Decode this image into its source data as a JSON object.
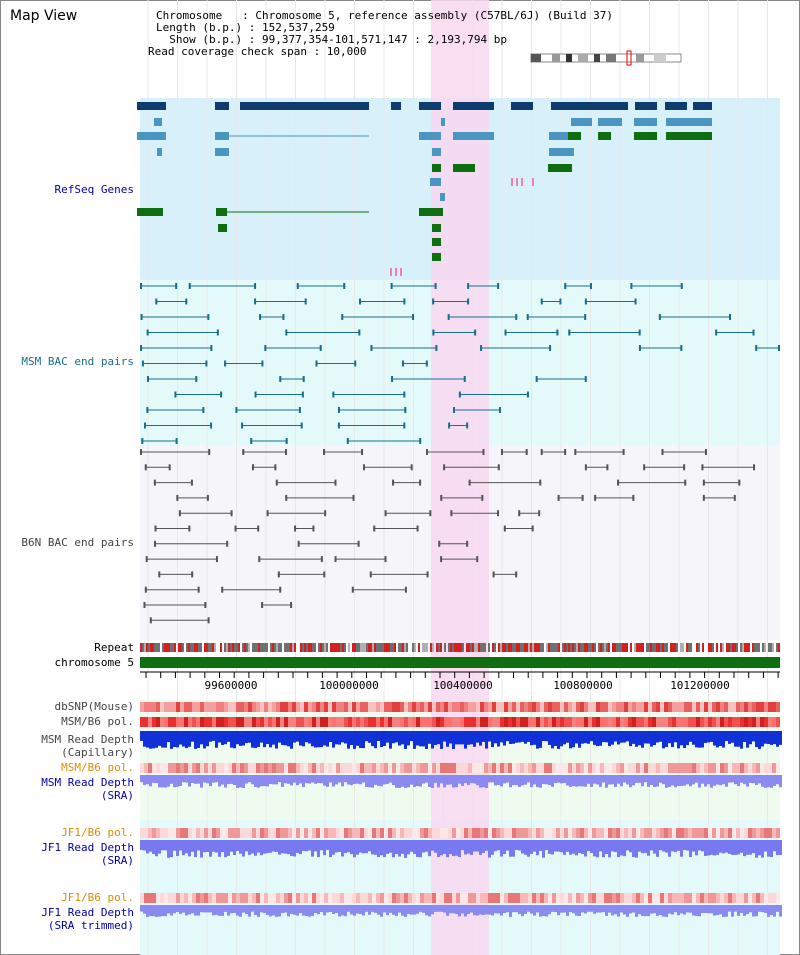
{
  "header": {
    "title": "Map View",
    "chromosome_line": "Chromosome   : Chromosome 5, reference assembly (C57BL/6J) (Build 37)",
    "length_line": "Length (b.p.) : 152,537,259",
    "show_line": "  Show (b.p.) : 99,377,354-101,571,147 : 2,193,794 bp",
    "coverage_line": "Read coverage check span : 10,000"
  },
  "tracks": {
    "refseq": "RefSeq Genes",
    "msm_bac": "MSM BAC end pairs",
    "b6n_bac": "B6N BAC end pairs",
    "repeat": "Repeat",
    "chromosome": "chromosome 5",
    "dbsnp": "dbSNP(Mouse)",
    "msm_b6_pol_1": "MSM/B6 pol.",
    "msm_read_depth_cap_1": "MSM Read Depth",
    "msm_read_depth_cap_2": "(Capillary)",
    "msm_b6_pol_2": "MSM/B6 pol.",
    "msm_read_depth_sra_1": "MSM Read Depth",
    "msm_read_depth_sra_2": "(SRA)",
    "jf1_b6_pol_1": "JF1/B6 pol.",
    "jf1_read_depth_sra_1": "JF1 Read Depth",
    "jf1_read_depth_sra_2": "(SRA)",
    "jf1_b6_pol_2": "JF1/B6 pol.",
    "jf1_read_depth_trim_1": "JF1 Read Depth",
    "jf1_read_depth_trim_2": "(SRA trimmed)"
  },
  "ruler": {
    "tick_labels": [
      "99600000",
      "100000000",
      "100400000",
      "100800000",
      "101200000"
    ]
  },
  "colors": {
    "refseq_bg": "#d8f0fa",
    "msm_bg": "#e4fafa",
    "b6n_bg": "#f5f5fa",
    "highlight": "#f8d8f0",
    "navy_gene": "#0f3c6e",
    "light_gene": "#4a96c0",
    "green_gene": "#0f6e0f",
    "msm_line": "#1a6e8c",
    "b6n_line": "#555555",
    "chromosome_bar": "#0f6e0f",
    "label_orange": "#e08c00",
    "label_blue": "#0000aa",
    "label_teal": "#1a6e8c",
    "label_gray": "#444444"
  }
}
